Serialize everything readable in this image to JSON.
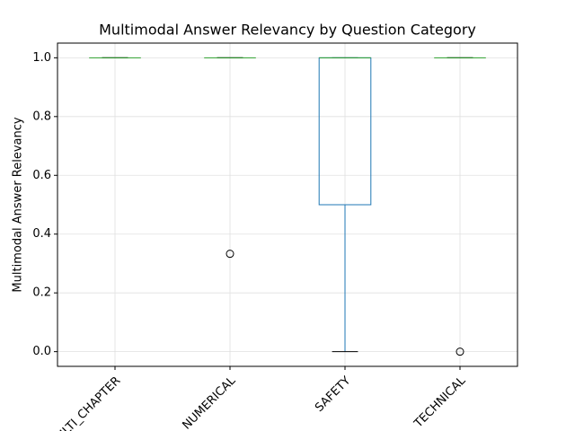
{
  "chart_data": {
    "type": "box",
    "title": "Multimodal Answer Relevancy by Question Category",
    "ylabel": "Multimodal Answer Relevancy",
    "categories": [
      "MULTI_CHAPTER",
      "NUMERICAL",
      "SAFETY",
      "TECHNICAL"
    ],
    "boxes": [
      {
        "min": 1.0,
        "q1": 1.0,
        "median": 1.0,
        "q3": 1.0,
        "max": 1.0,
        "outliers": []
      },
      {
        "min": 1.0,
        "q1": 1.0,
        "median": 1.0,
        "q3": 1.0,
        "max": 1.0,
        "outliers": [
          0.333
        ]
      },
      {
        "min": 0.0,
        "q1": 0.5,
        "median": 1.0,
        "q3": 1.0,
        "max": 1.0,
        "outliers": []
      },
      {
        "min": 1.0,
        "q1": 1.0,
        "median": 1.0,
        "q3": 1.0,
        "max": 1.0,
        "outliers": [
          0.0
        ]
      }
    ],
    "box_color": "#1f77b4",
    "median_color": "#2ca02c",
    "cap_color": "#000000",
    "ylim": [
      -0.05,
      1.05
    ],
    "yticks": [
      {
        "value": 0,
        "label": "0.0"
      },
      {
        "value": 0.2,
        "label": "0.2"
      },
      {
        "value": 0.4,
        "label": "0.4"
      },
      {
        "value": 0.6,
        "label": "0.6"
      },
      {
        "value": 0.8,
        "label": "0.8"
      },
      {
        "value": 1,
        "label": "1.0"
      }
    ],
    "grid": true
  }
}
